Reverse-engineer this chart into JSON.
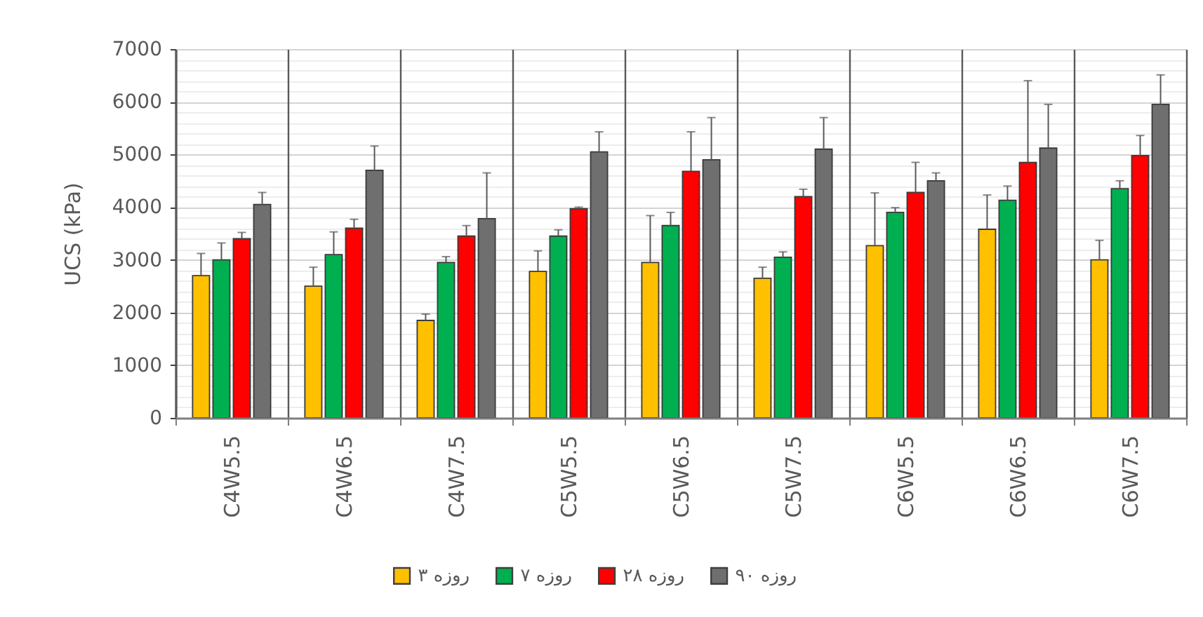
{
  "chart_data": {
    "type": "bar",
    "ylabel": "UCS (kPa)",
    "categories": [
      "C4W5.5",
      "C4W6.5",
      "C4W7.5",
      "C5W5.5",
      "C5W6.5",
      "C5W7.5",
      "C6W5.5",
      "C6W6.5",
      "C6W7.5"
    ],
    "series": [
      {
        "name": "۳ روزه",
        "color": "#ffc000",
        "values": [
          2700,
          2500,
          1850,
          2780,
          2950,
          2650,
          3270,
          3580,
          3000
        ],
        "errors": [
          [
            2700,
            3120
          ],
          [
            2500,
            2860
          ],
          [
            1850,
            1970
          ],
          [
            2780,
            3170
          ],
          [
            2950,
            3840
          ],
          [
            2650,
            2860
          ],
          [
            3270,
            4270
          ],
          [
            3580,
            4230
          ],
          [
            3000,
            3370
          ]
        ]
      },
      {
        "name": "۷ روزه",
        "color": "#00b050",
        "values": [
          3000,
          3100,
          2950,
          3450,
          3650,
          3050,
          3900,
          4130,
          4350
        ],
        "errors": [
          [
            3000,
            3320
          ],
          [
            3100,
            3530
          ],
          [
            2950,
            3060
          ],
          [
            3450,
            3570
          ],
          [
            3650,
            3900
          ],
          [
            3050,
            3150
          ],
          [
            3900,
            3990
          ],
          [
            4130,
            4400
          ],
          [
            4350,
            4500
          ]
        ]
      },
      {
        "name": "۲۸ روزه",
        "color": "#ff0000",
        "values": [
          3400,
          3600,
          3450,
          3970,
          4680,
          4200,
          4280,
          4850,
          4980
        ],
        "errors": [
          [
            3400,
            3520
          ],
          [
            3600,
            3770
          ],
          [
            3450,
            3650
          ],
          [
            3970,
            4000
          ],
          [
            4680,
            5430
          ],
          [
            4200,
            4340
          ],
          [
            4280,
            4850
          ],
          [
            4850,
            6400
          ],
          [
            4980,
            5360
          ]
        ]
      },
      {
        "name": "۹۰ روزه",
        "color": "#6f6f6f",
        "values": [
          4050,
          4700,
          3780,
          5050,
          4900,
          5100,
          4500,
          5120,
          5950
        ],
        "errors": [
          [
            4050,
            4280
          ],
          [
            4700,
            5160
          ],
          [
            3780,
            4650
          ],
          [
            5050,
            5430
          ],
          [
            4900,
            5700
          ],
          [
            5100,
            5700
          ],
          [
            4500,
            4650
          ],
          [
            5120,
            5950
          ],
          [
            5950,
            6510
          ]
        ]
      }
    ],
    "ylim": [
      0,
      7000
    ],
    "yticks": [
      0,
      {
        "value": 200,
        "label": null
      },
      {
        "value": 400,
        "label": null
      },
      {
        "value": 600,
        "label": null
      },
      {
        "value": 800,
        "label": null
      },
      1000,
      {
        "value": 1200,
        "label": null
      },
      {
        "value": 1400,
        "label": null
      },
      {
        "value": 1600,
        "label": null
      },
      {
        "value": 1800,
        "label": null
      },
      2000,
      {
        "value": 2200,
        "label": null
      },
      {
        "value": 2400,
        "label": null
      },
      {
        "value": 2600,
        "label": null
      },
      {
        "value": 2800,
        "label": null
      },
      3000,
      {
        "value": 3200,
        "label": null
      },
      {
        "value": 3400,
        "label": null
      },
      {
        "value": 3600,
        "label": null
      },
      {
        "value": 3800,
        "label": null
      },
      4000,
      {
        "value": 4200,
        "label": null
      },
      {
        "value": 4400,
        "label": null
      },
      {
        "value": 4600,
        "label": null
      },
      {
        "value": 4800,
        "label": null
      },
      5000,
      {
        "value": 5200,
        "label": null
      },
      {
        "value": 5400,
        "label": null
      },
      {
        "value": 5600,
        "label": null
      },
      {
        "value": 5800,
        "label": null
      },
      6000,
      {
        "value": 6200,
        "label": null
      },
      {
        "value": 6400,
        "label": null
      },
      {
        "value": 6600,
        "label": null
      },
      {
        "value": 6800,
        "label": null
      },
      7000
    ],
    "grid": true,
    "legend": "bottom"
  }
}
